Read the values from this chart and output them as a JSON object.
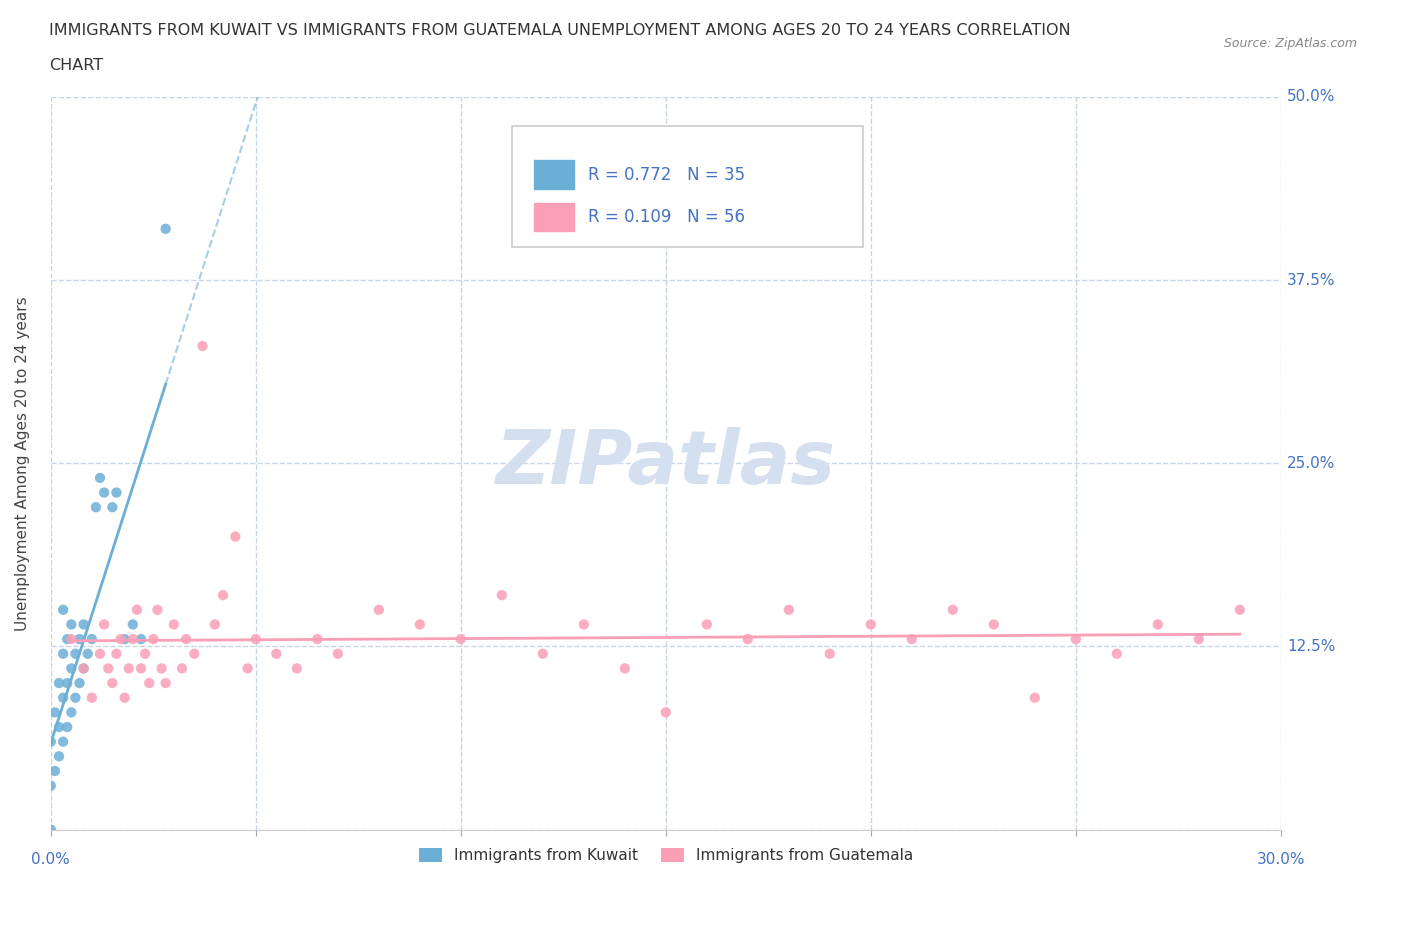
{
  "title_line1": "IMMIGRANTS FROM KUWAIT VS IMMIGRANTS FROM GUATEMALA UNEMPLOYMENT AMONG AGES 20 TO 24 YEARS CORRELATION",
  "title_line2": "CHART",
  "source": "Source: ZipAtlas.com",
  "ylabel": "Unemployment Among Ages 20 to 24 years",
  "xlabel_kuwait": "Immigrants from Kuwait",
  "xlabel_guatemala": "Immigrants from Guatemala",
  "xlim": [
    0.0,
    0.3
  ],
  "ylim": [
    0.0,
    0.5
  ],
  "yticks": [
    0.0,
    0.125,
    0.25,
    0.375,
    0.5
  ],
  "ytick_labels": [
    "0.0%",
    "12.5%",
    "25.0%",
    "37.5%",
    "50.0%"
  ],
  "xticks": [
    0.0,
    0.05,
    0.1,
    0.15,
    0.2,
    0.25,
    0.3
  ],
  "xtick_labels": [
    "0.0%",
    "",
    "",
    "",
    "",
    "",
    "30.0%"
  ],
  "color_kuwait": "#6baed6",
  "color_guatemala": "#fa9fb5",
  "watermark": "ZIPatlas",
  "watermark_color": "#d4dff0",
  "kuwait_scatter_x": [
    0.0,
    0.0,
    0.0,
    0.001,
    0.001,
    0.002,
    0.002,
    0.002,
    0.003,
    0.003,
    0.003,
    0.003,
    0.004,
    0.004,
    0.004,
    0.005,
    0.005,
    0.005,
    0.006,
    0.006,
    0.007,
    0.007,
    0.008,
    0.008,
    0.009,
    0.01,
    0.011,
    0.012,
    0.013,
    0.015,
    0.016,
    0.018,
    0.02,
    0.022,
    0.028
  ],
  "kuwait_scatter_y": [
    0.0,
    0.03,
    0.06,
    0.04,
    0.08,
    0.05,
    0.07,
    0.1,
    0.06,
    0.09,
    0.12,
    0.15,
    0.07,
    0.1,
    0.13,
    0.08,
    0.11,
    0.14,
    0.09,
    0.12,
    0.1,
    0.13,
    0.11,
    0.14,
    0.12,
    0.13,
    0.22,
    0.24,
    0.23,
    0.22,
    0.23,
    0.13,
    0.14,
    0.13,
    0.41
  ],
  "guatemala_scatter_x": [
    0.005,
    0.008,
    0.01,
    0.012,
    0.013,
    0.014,
    0.015,
    0.016,
    0.017,
    0.018,
    0.019,
    0.02,
    0.021,
    0.022,
    0.023,
    0.024,
    0.025,
    0.026,
    0.027,
    0.028,
    0.03,
    0.032,
    0.033,
    0.035,
    0.037,
    0.04,
    0.042,
    0.045,
    0.048,
    0.05,
    0.055,
    0.06,
    0.065,
    0.07,
    0.08,
    0.09,
    0.1,
    0.11,
    0.12,
    0.13,
    0.14,
    0.15,
    0.16,
    0.17,
    0.18,
    0.19,
    0.2,
    0.21,
    0.22,
    0.23,
    0.24,
    0.25,
    0.26,
    0.27,
    0.28,
    0.29
  ],
  "guatemala_scatter_y": [
    0.13,
    0.11,
    0.09,
    0.12,
    0.14,
    0.11,
    0.1,
    0.12,
    0.13,
    0.09,
    0.11,
    0.13,
    0.15,
    0.11,
    0.12,
    0.1,
    0.13,
    0.15,
    0.11,
    0.1,
    0.14,
    0.11,
    0.13,
    0.12,
    0.33,
    0.14,
    0.16,
    0.2,
    0.11,
    0.13,
    0.12,
    0.11,
    0.13,
    0.12,
    0.15,
    0.14,
    0.13,
    0.16,
    0.12,
    0.14,
    0.11,
    0.08,
    0.14,
    0.13,
    0.15,
    0.12,
    0.14,
    0.13,
    0.15,
    0.14,
    0.09,
    0.13,
    0.12,
    0.14,
    0.13,
    0.15
  ],
  "grid_color": "#c8d4e8",
  "tick_label_color": "#4472c4",
  "background_color": "#ffffff",
  "legend_R_kuwait": "R = 0.772",
  "legend_N_kuwait": "N = 35",
  "legend_R_guatemala": "R = 0.109",
  "legend_N_guatemala": "N = 56"
}
